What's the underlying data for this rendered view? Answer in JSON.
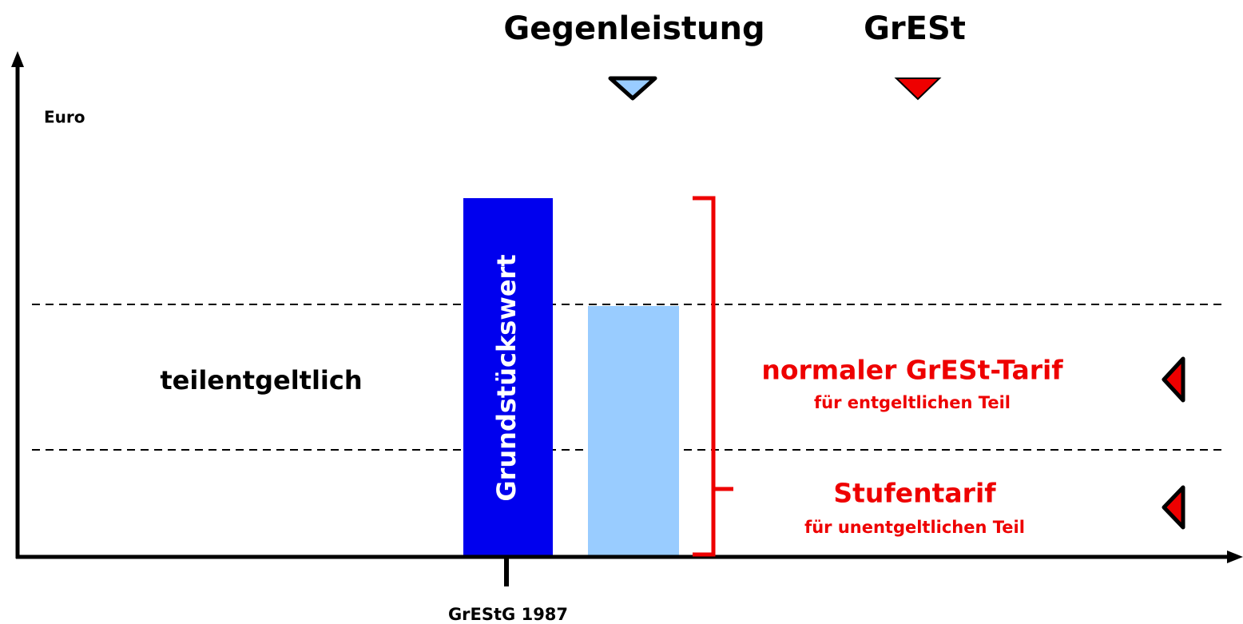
{
  "header": {
    "left_label": "Gegenleistung",
    "right_label": "GrESt"
  },
  "axis": {
    "y_label": "Euro",
    "x_label": "GrEStG 1987"
  },
  "bars": {
    "dark_label": "Grundstückswert"
  },
  "zones": {
    "left_label": "teilentgeltlich",
    "upper": {
      "title": "normaler GrESt-Tarif",
      "subtitle": "für entgeltlichen Teil"
    },
    "lower": {
      "title": "Stufentarif",
      "subtitle": "für unentgeltlichen Teil"
    }
  }
}
